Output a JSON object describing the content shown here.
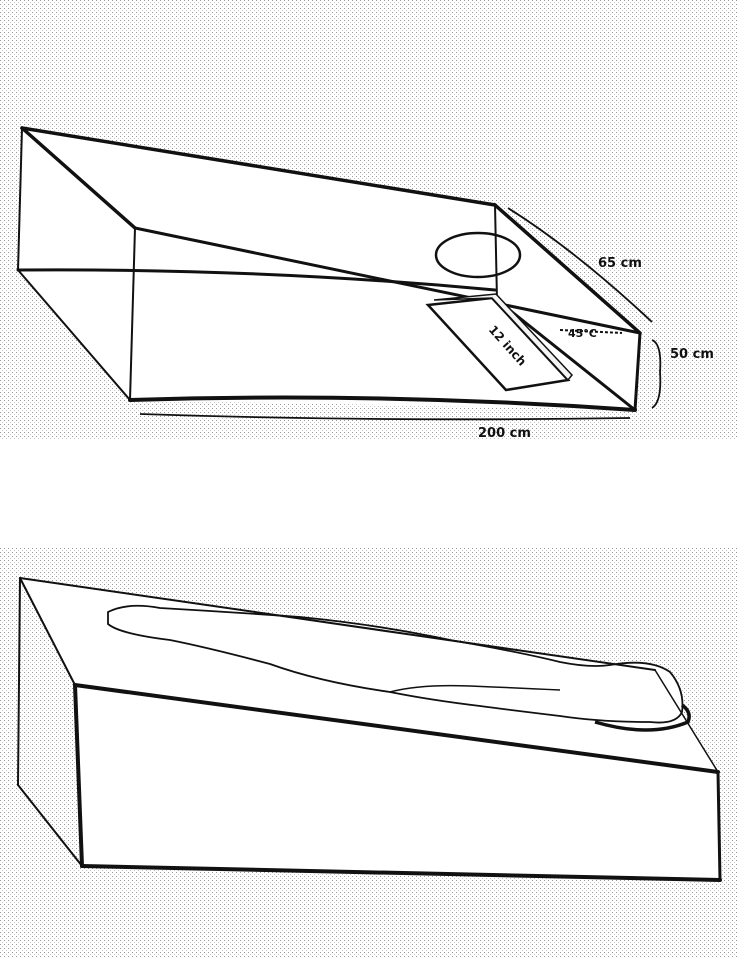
{
  "top_sketch": {
    "dimension_depth": "65 cm",
    "dimension_height": "50 cm",
    "dimension_length": "200 cm",
    "tablet_label": "12 inch",
    "side_label": "45°C"
  },
  "bottom_sketch": {}
}
